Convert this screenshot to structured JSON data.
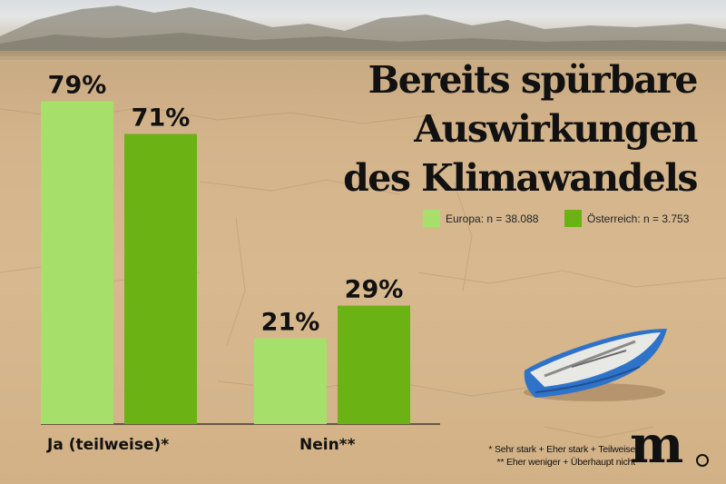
{
  "title_lines": [
    "Bereits spürbare",
    "Auswirkungen",
    "des Klimawandels"
  ],
  "legend": [
    {
      "label": "Europa: n = 38.088",
      "color": "#a6e06a"
    },
    {
      "label": "Österreich: n = 3.753",
      "color": "#6bb215"
    }
  ],
  "footnotes": [
    "* Sehr stark + Eher stark + Teilweise",
    "** Eher weniger + Überhaupt nicht"
  ],
  "logo_text": "m",
  "chart_data": {
    "type": "bar",
    "categories": [
      "Ja (teilweise)*",
      "Nein**"
    ],
    "series": [
      {
        "name": "Europa: n = 38.088",
        "values": [
          79,
          21
        ],
        "labels": [
          "79%",
          "21%"
        ],
        "color": "#a6e06a"
      },
      {
        "name": "Österreich: n = 3.753",
        "values": [
          71,
          29
        ],
        "labels": [
          "71%",
          "29%"
        ],
        "color": "#6bb215"
      }
    ],
    "ylim": [
      0,
      100
    ],
    "grid": false,
    "legend_position": "top-right"
  }
}
